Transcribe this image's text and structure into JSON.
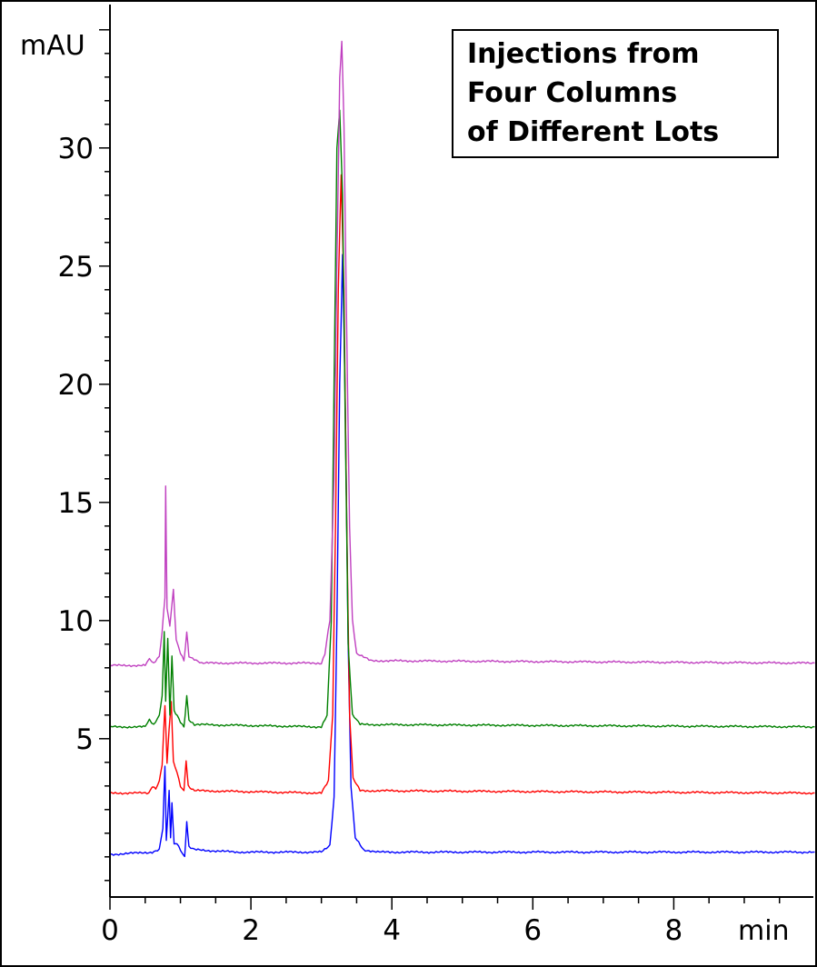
{
  "chart_data": {
    "type": "line",
    "title": "",
    "annotation": [
      "Injections from",
      "Four Columns",
      "of Different Lots"
    ],
    "xlabel": "min",
    "ylabel": "mAU",
    "xlim": [
      0,
      10
    ],
    "ylim": [
      -1.7,
      35.8
    ],
    "x_ticks": [
      0,
      2,
      4,
      6,
      8
    ],
    "y_ticks": [
      5,
      10,
      15,
      20,
      25,
      30
    ],
    "grid": false,
    "legend": "none",
    "series": [
      {
        "color": "#0000ff",
        "baseline": 0.1,
        "points": [
          [
            0,
            0.1
          ],
          [
            0.6,
            0.2
          ],
          [
            0.7,
            0.3
          ],
          [
            0.75,
            1.2
          ],
          [
            0.78,
            3.8
          ],
          [
            0.8,
            0.7
          ],
          [
            0.84,
            2.8
          ],
          [
            0.86,
            0.8
          ],
          [
            0.88,
            2.3
          ],
          [
            0.91,
            0.5
          ],
          [
            0.95,
            0.6
          ],
          [
            1.0,
            0.3
          ],
          [
            1.06,
            0.0
          ],
          [
            1.09,
            1.5
          ],
          [
            1.12,
            0.4
          ],
          [
            1.2,
            0.3
          ],
          [
            1.8,
            0.2
          ],
          [
            3.0,
            0.2
          ],
          [
            3.12,
            0.5
          ],
          [
            3.18,
            2.5
          ],
          [
            3.22,
            10.0
          ],
          [
            3.26,
            20.0
          ],
          [
            3.3,
            25.5
          ],
          [
            3.34,
            19.0
          ],
          [
            3.38,
            9.0
          ],
          [
            3.42,
            3.0
          ],
          [
            3.48,
            0.8
          ],
          [
            3.6,
            0.3
          ],
          [
            3.8,
            0.2
          ],
          [
            10,
            0.2
          ]
        ]
      },
      {
        "color": "#ff0000",
        "baseline": 2.6,
        "points": [
          [
            0,
            2.7
          ],
          [
            0.55,
            2.7
          ],
          [
            0.6,
            3.0
          ],
          [
            0.65,
            2.9
          ],
          [
            0.7,
            3.2
          ],
          [
            0.74,
            3.9
          ],
          [
            0.78,
            6.4
          ],
          [
            0.81,
            4.0
          ],
          [
            0.84,
            5.4
          ],
          [
            0.87,
            6.6
          ],
          [
            0.9,
            4.0
          ],
          [
            0.95,
            3.6
          ],
          [
            1.0,
            3.0
          ],
          [
            1.05,
            2.8
          ],
          [
            1.08,
            4.1
          ],
          [
            1.11,
            3.0
          ],
          [
            1.2,
            2.8
          ],
          [
            3.0,
            2.7
          ],
          [
            3.1,
            3.2
          ],
          [
            3.16,
            6.0
          ],
          [
            3.2,
            14.0
          ],
          [
            3.24,
            24.0
          ],
          [
            3.28,
            28.9
          ],
          [
            3.32,
            24.0
          ],
          [
            3.36,
            14.0
          ],
          [
            3.4,
            6.0
          ],
          [
            3.45,
            3.3
          ],
          [
            3.55,
            2.8
          ],
          [
            10,
            2.7
          ]
        ]
      },
      {
        "color": "#008000",
        "baseline": 5.5,
        "points": [
          [
            0,
            5.5
          ],
          [
            0.5,
            5.5
          ],
          [
            0.56,
            5.8
          ],
          [
            0.62,
            5.6
          ],
          [
            0.7,
            6.0
          ],
          [
            0.74,
            6.8
          ],
          [
            0.77,
            9.5
          ],
          [
            0.79,
            6.6
          ],
          [
            0.82,
            9.2
          ],
          [
            0.85,
            6.0
          ],
          [
            0.88,
            8.5
          ],
          [
            0.91,
            6.2
          ],
          [
            1.0,
            5.7
          ],
          [
            1.05,
            5.5
          ],
          [
            1.09,
            6.8
          ],
          [
            1.12,
            5.8
          ],
          [
            1.2,
            5.6
          ],
          [
            3.0,
            5.5
          ],
          [
            3.08,
            6.0
          ],
          [
            3.14,
            10.0
          ],
          [
            3.18,
            20.0
          ],
          [
            3.22,
            30.0
          ],
          [
            3.26,
            31.6
          ],
          [
            3.3,
            28.0
          ],
          [
            3.34,
            18.0
          ],
          [
            3.38,
            9.0
          ],
          [
            3.44,
            6.0
          ],
          [
            3.55,
            5.6
          ],
          [
            10,
            5.5
          ]
        ]
      },
      {
        "color": "#c040c0",
        "baseline": 8.1,
        "points": [
          [
            0,
            8.1
          ],
          [
            0.5,
            8.1
          ],
          [
            0.56,
            8.4
          ],
          [
            0.62,
            8.2
          ],
          [
            0.7,
            8.5
          ],
          [
            0.74,
            9.5
          ],
          [
            0.78,
            11.0
          ],
          [
            0.79,
            15.7
          ],
          [
            0.81,
            10.5
          ],
          [
            0.85,
            9.8
          ],
          [
            0.9,
            11.3
          ],
          [
            0.94,
            9.2
          ],
          [
            1.0,
            8.6
          ],
          [
            1.05,
            8.3
          ],
          [
            1.09,
            9.5
          ],
          [
            1.12,
            8.5
          ],
          [
            1.3,
            8.2
          ],
          [
            3.0,
            8.2
          ],
          [
            3.05,
            8.6
          ],
          [
            3.12,
            10.0
          ],
          [
            3.18,
            16.0
          ],
          [
            3.22,
            25.0
          ],
          [
            3.26,
            33.0
          ],
          [
            3.29,
            34.5
          ],
          [
            3.32,
            31.0
          ],
          [
            3.36,
            22.0
          ],
          [
            3.4,
            14.0
          ],
          [
            3.44,
            10.0
          ],
          [
            3.5,
            8.6
          ],
          [
            3.7,
            8.3
          ],
          [
            10,
            8.2
          ]
        ]
      }
    ]
  }
}
